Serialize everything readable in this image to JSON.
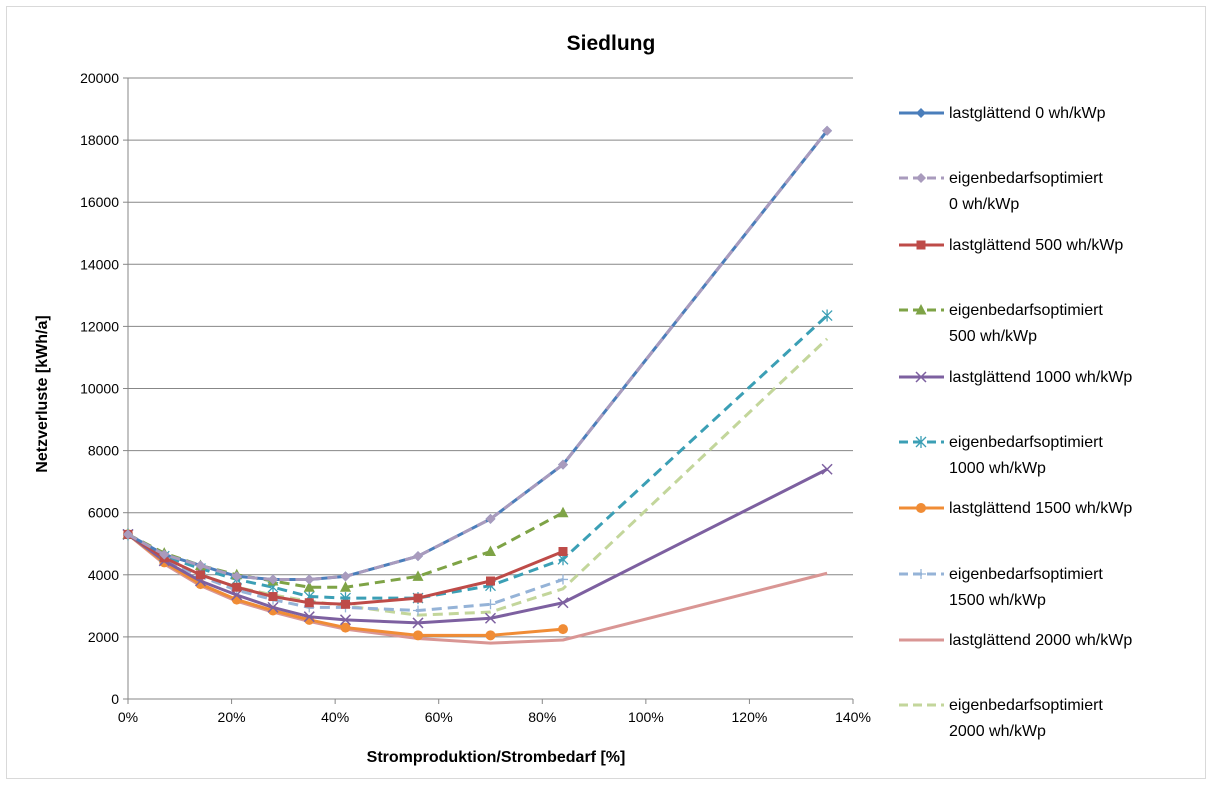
{
  "chart_data": {
    "type": "line",
    "title": "Siedlung",
    "xlabel": "Stromproduktion/Strombedarf [%]",
    "ylabel": "Netzverluste [kWh/a]",
    "xlim": [
      0,
      140
    ],
    "ylim": [
      0,
      20000
    ],
    "x_ticks": [
      "0%",
      "20%",
      "40%",
      "60%",
      "80%",
      "100%",
      "120%",
      "140%"
    ],
    "y_ticks": [
      "0",
      "2000",
      "4000",
      "6000",
      "8000",
      "10000",
      "12000",
      "14000",
      "16000",
      "18000",
      "20000"
    ],
    "grid": "horizontal",
    "legend_position": "right",
    "x": [
      0,
      7,
      14,
      21,
      28,
      35,
      42,
      56,
      70,
      84,
      135
    ],
    "series": [
      {
        "name": "lastglättend 0 wh/kWp",
        "color": "#4a7ebb",
        "dash": "solid",
        "marker": "diamond",
        "values": [
          5300,
          4650,
          4300,
          3950,
          3850,
          3850,
          3950,
          4600,
          5800,
          7550,
          18300
        ]
      },
      {
        "name": "eigenbedarfsoptimiert 0 wh/kWp",
        "color": "#a99bbd",
        "dash": "dashed",
        "marker": "diamond",
        "values": [
          5300,
          4650,
          4300,
          3950,
          3850,
          3850,
          3950,
          4600,
          5800,
          7550,
          18300
        ]
      },
      {
        "name": "lastglättend 500 wh/kWp",
        "color": "#be4b48",
        "dash": "solid",
        "marker": "square",
        "values": [
          5300,
          4550,
          4000,
          3600,
          3300,
          3100,
          3050,
          3250,
          3800,
          4750,
          null
        ]
      },
      {
        "name": "eigenbedarfsoptimiert 500 wh/kWp",
        "color": "#7ea346",
        "dash": "dashed",
        "marker": "triangle",
        "values": [
          5300,
          4700,
          4300,
          4000,
          3800,
          3600,
          3600,
          3950,
          4750,
          6000,
          null
        ]
      },
      {
        "name": "lastglättend 1000 wh/kWp",
        "color": "#7d60a0",
        "dash": "solid",
        "marker": "x",
        "values": [
          5300,
          4450,
          3800,
          3350,
          2950,
          2650,
          2550,
          2450,
          2600,
          3100,
          7400
        ]
      },
      {
        "name": "eigenbedarfsoptimiert 1000 wh/kWp",
        "color": "#3b9fb5",
        "dash": "dashed",
        "marker": "star",
        "values": [
          5300,
          4600,
          4200,
          3850,
          3600,
          3300,
          3250,
          3250,
          3650,
          4500,
          12350
        ]
      },
      {
        "name": "lastglättend 1500 wh/kWp",
        "color": "#f08c35",
        "dash": "solid",
        "marker": "circle",
        "values": [
          5300,
          4400,
          3700,
          3200,
          2850,
          2550,
          2300,
          2050,
          2050,
          2250,
          null
        ]
      },
      {
        "name": "eigenbedarfsoptimiert 1500 wh/kWp",
        "color": "#95b3d7",
        "dash": "dashed",
        "marker": "plus",
        "values": [
          5300,
          4500,
          3950,
          3500,
          3200,
          2950,
          2950,
          2850,
          3050,
          3850,
          null
        ]
      },
      {
        "name": "lastglättend 2000 wh/kWp",
        "color": "#d99694",
        "dash": "solid",
        "marker": "none",
        "values": [
          5300,
          4350,
          3650,
          3150,
          2800,
          2500,
          2250,
          1950,
          1800,
          1900,
          4050
        ]
      },
      {
        "name": "eigenbedarfsoptimiert 2000 wh/kWp",
        "color": "#c3d69b",
        "dash": "dashed",
        "marker": "none",
        "values": [
          5300,
          4500,
          4000,
          3600,
          3350,
          3150,
          3000,
          2700,
          2800,
          3550,
          11600
        ]
      }
    ]
  },
  "legend": [
    {
      "lines": [
        "lastglättend 0 wh/kWp"
      ]
    },
    {
      "lines": [
        "eigenbedarfsoptimiert",
        "0 wh/kWp"
      ]
    },
    {
      "lines": [
        "lastglättend 500 wh/kWp"
      ]
    },
    {
      "lines": [
        "eigenbedarfsoptimiert",
        "500 wh/kWp"
      ]
    },
    {
      "lines": [
        "lastglättend 1000 wh/kWp"
      ]
    },
    {
      "lines": [
        "eigenbedarfsoptimiert",
        "1000 wh/kWp"
      ]
    },
    {
      "lines": [
        "lastglättend 1500 wh/kWp"
      ]
    },
    {
      "lines": [
        "eigenbedarfsoptimiert",
        "1500 wh/kWp"
      ]
    },
    {
      "lines": [
        "lastglättend 2000 wh/kWp"
      ]
    },
    {
      "lines": [
        "eigenbedarfsoptimiert",
        "2000 wh/kWp"
      ]
    }
  ]
}
